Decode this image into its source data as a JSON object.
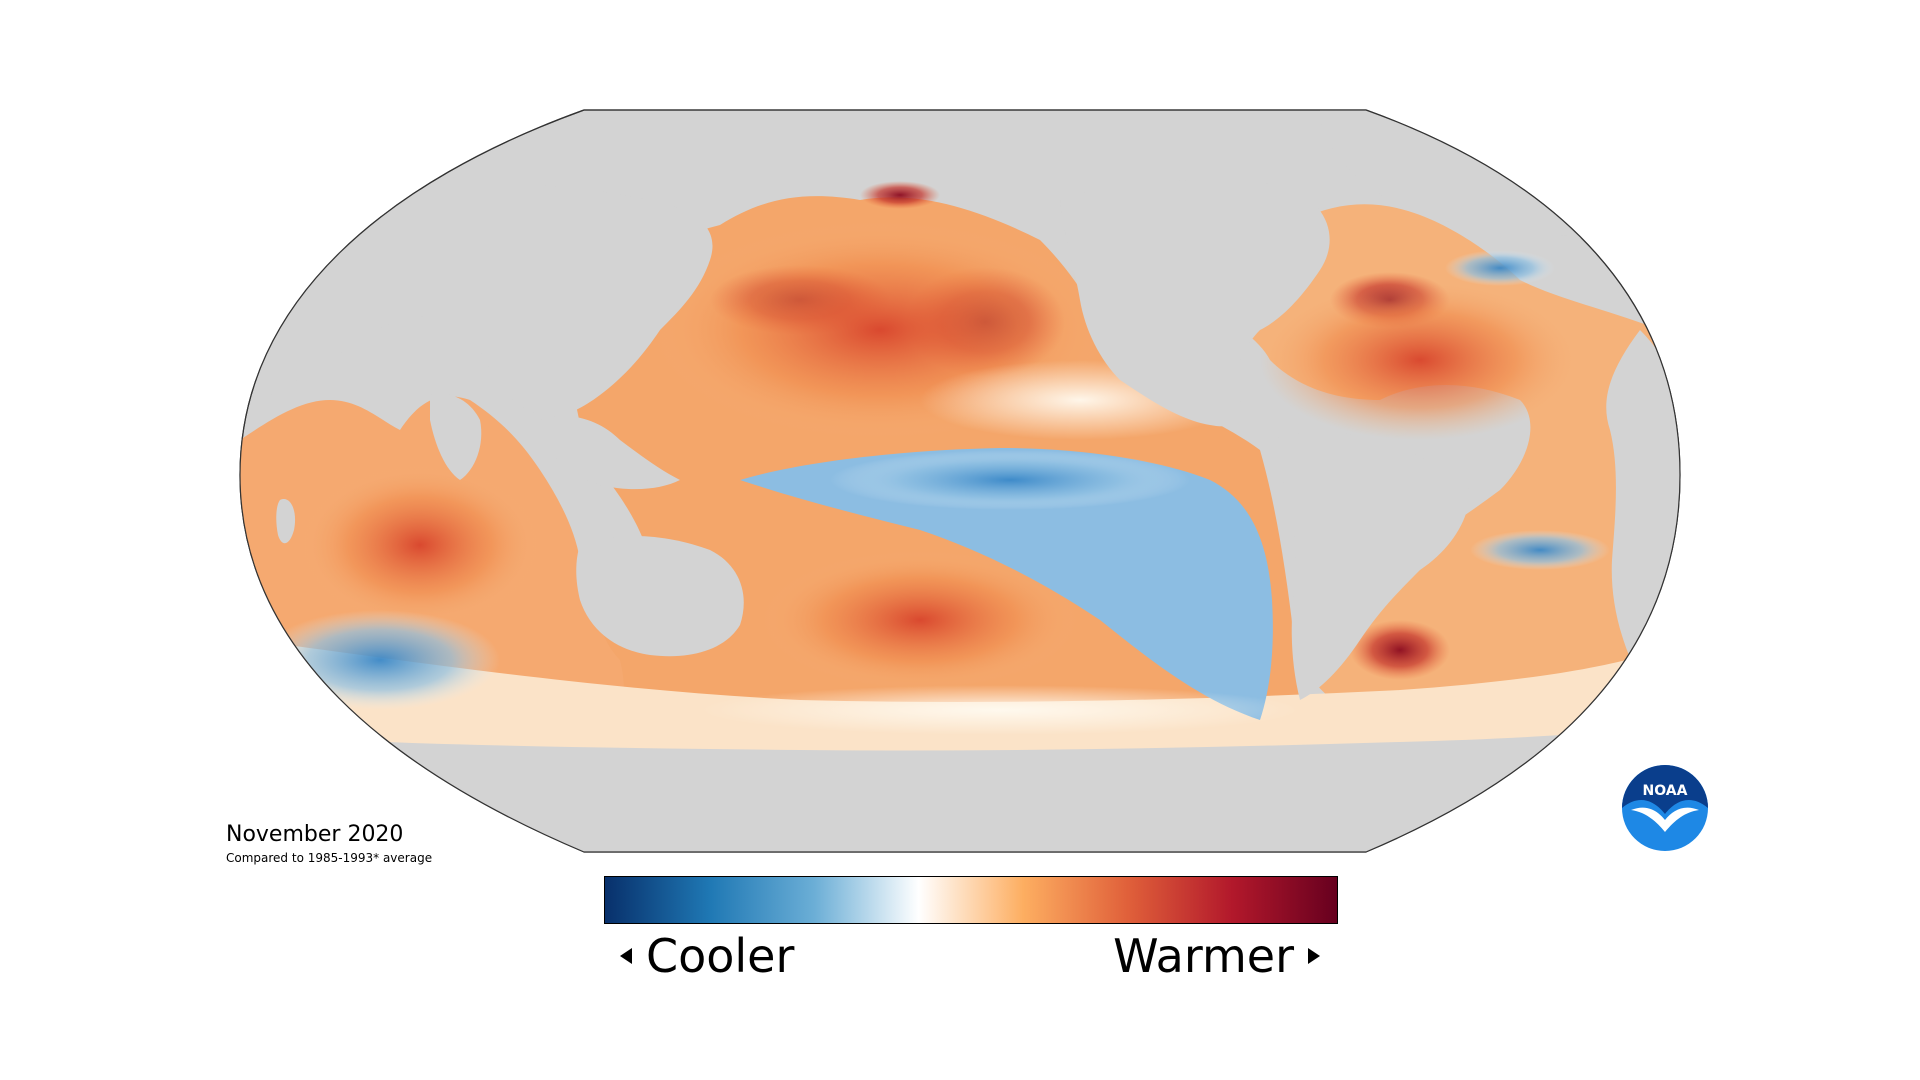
{
  "map": {
    "date_title": "November 2020",
    "subtitle": "Compared to 1985-1993* average",
    "land_color": "#d3d3d3",
    "outline_color": "#333333"
  },
  "legend": {
    "left_label": "Cooler",
    "right_label": "Warmer",
    "colors": [
      "#08306b",
      "#1f78b4",
      "#6baed6",
      "#ffffff",
      "#fdae61",
      "#e0603a",
      "#b2182b",
      "#67001f"
    ]
  },
  "logo": {
    "text": "NOAA",
    "colors": [
      "#0a3e8c",
      "#1e88e5"
    ]
  }
}
